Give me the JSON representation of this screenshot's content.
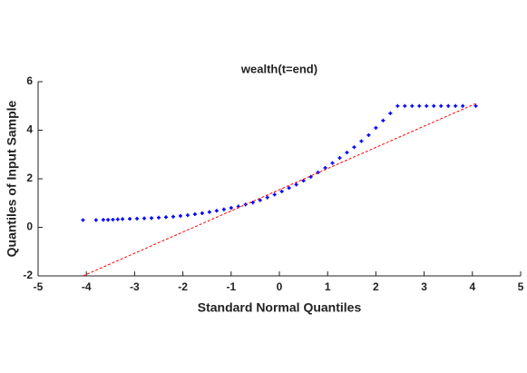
{
  "chart_data": {
    "type": "scatter",
    "title": "wealth(t=end)",
    "xlabel": "Standard Normal Quantiles",
    "ylabel": "Quantiles of Input Sample",
    "xlim": [
      -5,
      5
    ],
    "xticks": [
      -5,
      -4,
      -3,
      -2,
      -1,
      0,
      1,
      2,
      3,
      4,
      5
    ],
    "ylim": [
      -2,
      6
    ],
    "yticks": [
      -2,
      0,
      2,
      4,
      6
    ],
    "series": [
      {
        "color": "#0000ff",
        "marker": "+",
        "x": [
          -4.07,
          -3.8,
          -3.65,
          -3.55,
          -3.45,
          -3.35,
          -3.25,
          -3.1,
          -2.95,
          -2.8,
          -2.65,
          -2.5,
          -2.35,
          -2.2,
          -2.05,
          -1.9,
          -1.75,
          -1.6,
          -1.45,
          -1.3,
          -1.15,
          -1.0,
          -0.85,
          -0.7,
          -0.55,
          -0.4,
          -0.25,
          -0.1,
          0.05,
          0.2,
          0.35,
          0.5,
          0.65,
          0.8,
          0.95,
          1.1,
          1.25,
          1.4,
          1.55,
          1.7,
          1.85,
          2.0,
          2.15,
          2.3,
          2.45,
          2.6,
          2.75,
          2.9,
          3.05,
          3.2,
          3.35,
          3.5,
          3.65,
          3.8,
          4.07
        ],
        "y": [
          0.3,
          0.3,
          0.31,
          0.31,
          0.32,
          0.33,
          0.34,
          0.35,
          0.36,
          0.37,
          0.38,
          0.4,
          0.42,
          0.44,
          0.47,
          0.5,
          0.54,
          0.58,
          0.63,
          0.68,
          0.74,
          0.8,
          0.86,
          0.94,
          1.02,
          1.12,
          1.23,
          1.35,
          1.48,
          1.62,
          1.76,
          1.92,
          2.08,
          2.26,
          2.45,
          2.65,
          2.86,
          3.08,
          3.3,
          3.55,
          3.8,
          4.1,
          4.4,
          4.7,
          5.0,
          5.0,
          5.0,
          5.0,
          5.0,
          5.0,
          5.0,
          5.0,
          5.0,
          5.0,
          5.0
        ]
      },
      {
        "color": "#ff0000",
        "line_style": "dashed",
        "x": [
          -4.07,
          4.07
        ],
        "y": [
          -2.0,
          5.1
        ]
      }
    ]
  }
}
